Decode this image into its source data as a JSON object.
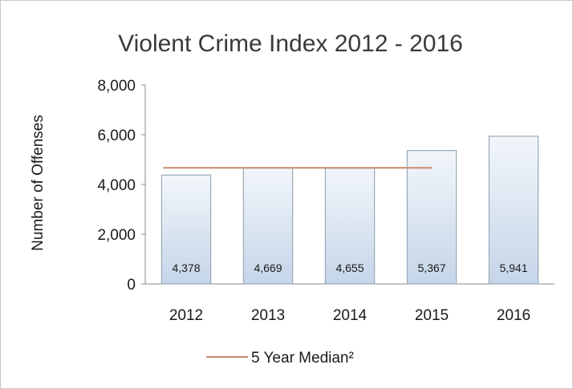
{
  "chart_data": {
    "type": "bar",
    "title": "Violent Crime Index 2012 - 2016",
    "xlabel": "",
    "ylabel": "Number of Offenses",
    "categories": [
      "2012",
      "2013",
      "2014",
      "2015",
      "2016"
    ],
    "values": [
      4378,
      4669,
      4655,
      5367,
      5941
    ],
    "data_labels": [
      "4,378",
      "4,669",
      "4,655",
      "5,367",
      "5,941"
    ],
    "ylim": [
      0,
      8000
    ],
    "yticks": [
      0,
      2000,
      4000,
      6000,
      8000
    ],
    "ytick_labels": [
      "0",
      "2,000",
      "4,000",
      "6,000",
      "8,000"
    ],
    "grid": false,
    "legend_position": "bottom",
    "reference_line": {
      "name": "5 Year Median²",
      "value": 4669,
      "from_category": "2012",
      "to_category": "2015",
      "color": "#c8896a"
    },
    "colors": {
      "bar_fill_top": "#f2f6fb",
      "bar_fill_bottom": "#c5d5e8",
      "bar_stroke": "#9aaab8",
      "axis": "#8a8a8a"
    }
  }
}
